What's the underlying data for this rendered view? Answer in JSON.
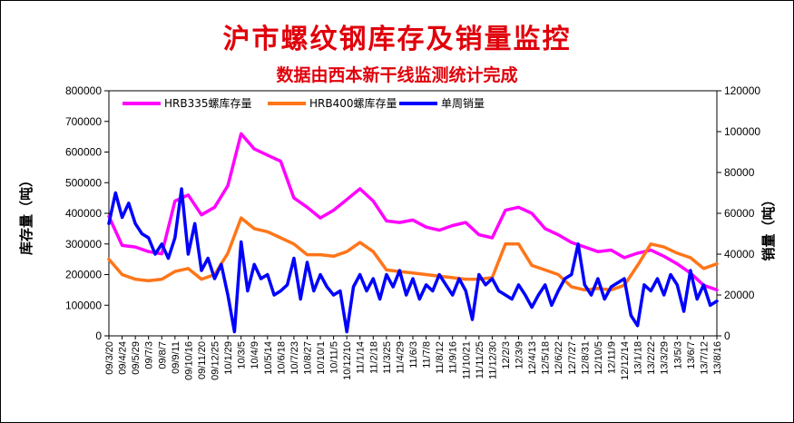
{
  "title": "沪市螺纹钢库存及销量监控",
  "subtitle": "数据由西本新干线监测统计完成",
  "chart_data": {
    "type": "line",
    "ylabel_left": "库存量（吨）",
    "ylabel_right": "销量（吨）",
    "ylim_left": [
      0,
      800000
    ],
    "ylim_right": [
      0,
      120000
    ],
    "yticks_left": [
      "0",
      "100000",
      "200000",
      "300000",
      "400000",
      "500000",
      "600000",
      "700000",
      "800000"
    ],
    "yticks_right": [
      "0",
      "20000",
      "40000",
      "60000",
      "80000",
      "100000",
      "120000"
    ],
    "x_ticks": [
      "09/3/20",
      "09/4/24",
      "09/5/29",
      "09/7/3",
      "09/8/7",
      "09/9/11",
      "09/10/16",
      "09/11/20",
      "09/12/25",
      "10/1/29",
      "10/3/5",
      "10/4/9",
      "10/5/14",
      "10/6/18",
      "10/7/23",
      "10/8/27",
      "10/10/1",
      "10/11/5",
      "10/12/10",
      "11/1/14",
      "11/2/18",
      "11/3/25",
      "11/4/29",
      "11/6/3",
      "11/7/8",
      "11/8/12",
      "11/9/16",
      "11/10/21",
      "11/11/25",
      "11/12/30",
      "12/2/3",
      "12/3/9",
      "12/4/13",
      "12/5/18",
      "12/6/22",
      "12/7/27",
      "12/8/31",
      "12/10/5",
      "12/11/9",
      "12/12/14",
      "13/1/18",
      "13/2/22",
      "13/3/29",
      "13/5/3",
      "13/6/7",
      "13/7/12",
      "13/8/16"
    ],
    "legend_position": "top",
    "grid": false,
    "series": [
      {
        "name": "HRB335螺库存量",
        "axis": "left",
        "color": "#ff00ff",
        "x": [
          0,
          1,
          2,
          3,
          4,
          5,
          6,
          7,
          8,
          9,
          10,
          11,
          12,
          13,
          14,
          15,
          16,
          17,
          18,
          19,
          20,
          21,
          22,
          23,
          24,
          25,
          26,
          27,
          28,
          29,
          30,
          31,
          32,
          33,
          34,
          35,
          36,
          37,
          38,
          39,
          40,
          41,
          42,
          43,
          44,
          45,
          46
        ],
        "values": [
          390000,
          295000,
          290000,
          275000,
          268000,
          440000,
          460000,
          395000,
          420000,
          490000,
          660000,
          610000,
          590000,
          570000,
          450000,
          420000,
          385000,
          410000,
          445000,
          480000,
          440000,
          375000,
          370000,
          378000,
          355000,
          345000,
          360000,
          370000,
          330000,
          320000,
          410000,
          420000,
          400000,
          350000,
          330000,
          305000,
          290000,
          275000,
          280000,
          255000,
          270000,
          280000,
          260000,
          235000,
          205000,
          165000,
          150000
        ]
      },
      {
        "name": "HRB400螺库存量",
        "axis": "left",
        "color": "#ff7519",
        "x": [
          0,
          1,
          2,
          3,
          4,
          5,
          6,
          7,
          8,
          9,
          10,
          11,
          12,
          13,
          14,
          15,
          16,
          17,
          18,
          19,
          20,
          21,
          22,
          23,
          24,
          25,
          26,
          27,
          28,
          29,
          30,
          31,
          32,
          33,
          34,
          35,
          36,
          37,
          38,
          39,
          40,
          41,
          42,
          43,
          44,
          45,
          46
        ],
        "values": [
          250000,
          200000,
          185000,
          180000,
          185000,
          210000,
          220000,
          185000,
          200000,
          270000,
          385000,
          350000,
          340000,
          320000,
          300000,
          265000,
          265000,
          260000,
          275000,
          305000,
          275000,
          215000,
          210000,
          205000,
          200000,
          195000,
          190000,
          185000,
          185000,
          190000,
          300000,
          300000,
          230000,
          215000,
          200000,
          160000,
          150000,
          155000,
          150000,
          165000,
          230000,
          300000,
          290000,
          270000,
          255000,
          220000,
          235000
        ]
      },
      {
        "name": "单周销量",
        "axis": "right",
        "color": "#0000ff",
        "x": [
          0,
          0.5,
          1,
          1.5,
          2,
          2.5,
          3,
          3.5,
          4,
          4.5,
          5,
          5.5,
          6,
          6.5,
          7,
          7.5,
          8,
          8.5,
          9,
          9.5,
          10,
          10.5,
          11,
          11.5,
          12,
          12.5,
          13,
          13.5,
          14,
          14.5,
          15,
          15.5,
          16,
          16.5,
          17,
          17.5,
          18,
          18.5,
          19,
          19.5,
          20,
          20.5,
          21,
          21.5,
          22,
          22.5,
          23,
          23.5,
          24,
          24.5,
          25,
          25.5,
          26,
          26.5,
          27,
          27.5,
          28,
          28.5,
          29,
          29.5,
          30,
          30.5,
          31,
          31.5,
          32,
          32.5,
          33,
          33.5,
          34,
          34.5,
          35,
          35.5,
          36,
          36.5,
          37,
          37.5,
          38,
          38.5,
          39,
          39.5,
          40,
          40.5,
          41,
          41.5,
          42,
          42.5,
          43,
          43.5,
          44,
          44.5,
          45,
          45.5,
          46
        ],
        "values": [
          55000,
          70000,
          58000,
          65000,
          55000,
          50000,
          48000,
          40000,
          45000,
          38000,
          48000,
          72000,
          40000,
          55000,
          32000,
          38000,
          28000,
          35000,
          20000,
          2000,
          46000,
          22000,
          35000,
          28000,
          30000,
          20000,
          22000,
          25000,
          38000,
          18000,
          36000,
          22000,
          30000,
          24000,
          20000,
          22000,
          2000,
          24000,
          30000,
          22000,
          28000,
          18000,
          30000,
          24000,
          32000,
          20000,
          28000,
          18000,
          25000,
          22000,
          30000,
          25000,
          20000,
          28000,
          22000,
          8000,
          30000,
          25000,
          28000,
          22000,
          20000,
          18000,
          25000,
          20000,
          14000,
          20000,
          25000,
          15000,
          22000,
          28000,
          30000,
          45000,
          25000,
          20000,
          28000,
          18000,
          24000,
          26000,
          28000,
          10000,
          5000,
          25000,
          22000,
          28000,
          20000,
          30000,
          25000,
          12000,
          32000,
          18000,
          25000,
          15000,
          17000
        ]
      }
    ]
  }
}
